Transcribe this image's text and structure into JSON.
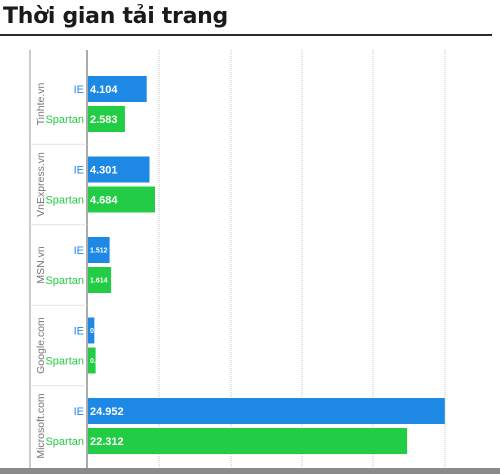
{
  "title": "Thời gian tải trang",
  "chart_data": {
    "type": "bar",
    "orientation": "horizontal",
    "title": "Thời gian tải trang",
    "categories": [
      "Tinhte.vn",
      "VnExpress.vn",
      "MSN.vn",
      "Google.com",
      "Microsoft.com"
    ],
    "series": [
      {
        "name": "IE",
        "values": [
          4.104,
          4.301,
          1.512,
          0.444,
          24.952
        ],
        "labels": [
          "4.104",
          "4.301",
          "1.512",
          "0.444",
          "24.952"
        ],
        "color": "#1e88e5"
      },
      {
        "name": "Spartan",
        "values": [
          2.583,
          4.684,
          1.614,
          0.532,
          22.312
        ],
        "labels": [
          "2.583",
          "4.684",
          "1.614",
          "0.532",
          "22.312"
        ],
        "color": "#22cc44"
      }
    ],
    "xlim": [
      0,
      28
    ],
    "grid": true,
    "legend": "none"
  }
}
